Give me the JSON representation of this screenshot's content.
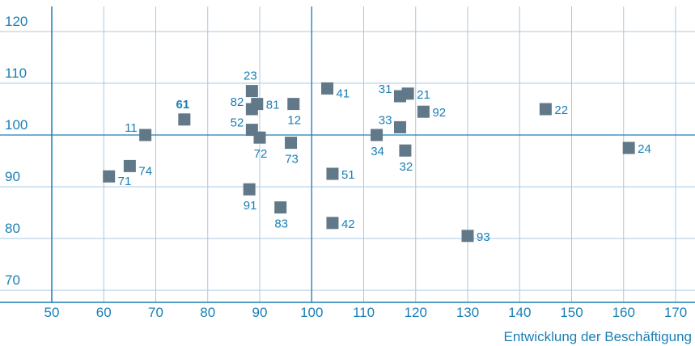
{
  "chart_data": {
    "type": "scatter",
    "title": "",
    "xlabel": "Entwicklung der Beschäftigung",
    "ylabel": "",
    "xlim": [
      50,
      170
    ],
    "ylim": [
      70,
      122
    ],
    "x_ticks": [
      50,
      60,
      70,
      80,
      90,
      100,
      110,
      120,
      130,
      140,
      150,
      160,
      170
    ],
    "y_ticks": [
      70,
      80,
      90,
      100,
      110,
      120
    ],
    "reference_lines": {
      "x": 100,
      "y": 100
    },
    "grid": true,
    "marker_color": "#617888",
    "text_color": "#1a7fb5",
    "grid_color": "#a9c8e2",
    "reference_line_color": "#1a7fb5",
    "points": [
      {
        "label": "11",
        "x": 68,
        "y": 100,
        "label_pos": "left"
      },
      {
        "label": "12",
        "x": 96.5,
        "y": 106,
        "label_pos": "below"
      },
      {
        "label": "21",
        "x": 118.5,
        "y": 108,
        "label_pos": "right"
      },
      {
        "label": "22",
        "x": 145,
        "y": 105,
        "label_pos": "right"
      },
      {
        "label": "23",
        "x": 88.5,
        "y": 108.5,
        "label_pos": "above"
      },
      {
        "label": "24",
        "x": 161,
        "y": 97.5,
        "label_pos": "right"
      },
      {
        "label": "31",
        "x": 117,
        "y": 107.5,
        "label_pos": "left"
      },
      {
        "label": "32",
        "x": 118,
        "y": 97,
        "label_pos": "below"
      },
      {
        "label": "33",
        "x": 117,
        "y": 101.5,
        "label_pos": "left"
      },
      {
        "label": "34",
        "x": 112.5,
        "y": 100,
        "label_pos": "below"
      },
      {
        "label": "41",
        "x": 103,
        "y": 109,
        "label_pos": "right-low"
      },
      {
        "label": "42",
        "x": 104,
        "y": 83,
        "label_pos": "right"
      },
      {
        "label": "51",
        "x": 104,
        "y": 92.5,
        "label_pos": "right"
      },
      {
        "label": "52",
        "x": 88.5,
        "y": 101,
        "label_pos": "left"
      },
      {
        "label": "61",
        "x": 75.5,
        "y": 103,
        "label_pos": "above",
        "bold": true
      },
      {
        "label": "71",
        "x": 61,
        "y": 92,
        "label_pos": "right-low"
      },
      {
        "label": "72",
        "x": 90,
        "y": 99.5,
        "label_pos": "below"
      },
      {
        "label": "73",
        "x": 96,
        "y": 98.5,
        "label_pos": "below"
      },
      {
        "label": "74",
        "x": 65,
        "y": 94,
        "label_pos": "right-low"
      },
      {
        "label": "81",
        "x": 89.5,
        "y": 106,
        "label_pos": "right"
      },
      {
        "label": "82",
        "x": 88.5,
        "y": 105,
        "label_pos": "left"
      },
      {
        "label": "83",
        "x": 94,
        "y": 86,
        "label_pos": "below"
      },
      {
        "label": "91",
        "x": 88,
        "y": 89.5,
        "label_pos": "below"
      },
      {
        "label": "92",
        "x": 121.5,
        "y": 104.5,
        "label_pos": "right"
      },
      {
        "label": "93",
        "x": 130,
        "y": 80.5,
        "label_pos": "right"
      }
    ]
  }
}
